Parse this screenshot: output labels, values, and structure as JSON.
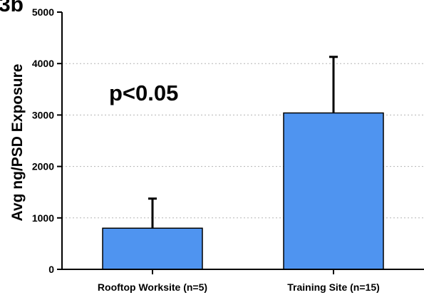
{
  "chart_data": {
    "type": "bar",
    "title": "",
    "panel_label": "3b",
    "annotation": "p<0.05",
    "xlabel": "",
    "ylabel": "Avg ng/PSD Exposure",
    "ylim": [
      0,
      5000
    ],
    "yticks": [
      0,
      1000,
      2000,
      3000,
      4000,
      5000
    ],
    "grid": true,
    "categories": [
      "Rooftop Worksite (n=5)",
      "Training Site (n=15)"
    ],
    "values": [
      800,
      3040
    ],
    "error_upper": [
      575,
      1090
    ],
    "bar_color": "#4f94f0"
  }
}
